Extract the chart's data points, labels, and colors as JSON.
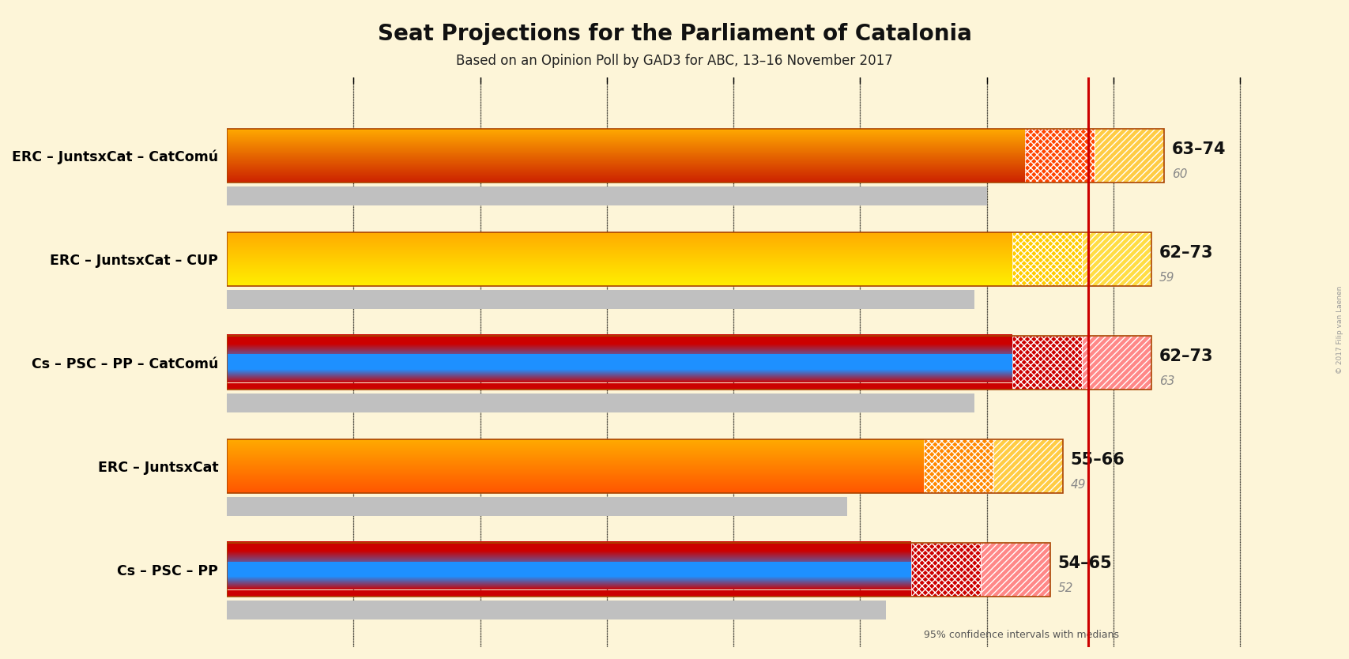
{
  "title": "Seat Projections for the Parliament of Catalonia",
  "subtitle": "Based on an Opinion Poll by GAD3 for ABC, 13–16 November 2017",
  "copyright": "© 2017 Filip van Laenen",
  "background_color": "#fdf5d8",
  "coalitions": [
    {
      "name": "ERC – JuntsxCat – CatComú",
      "range_label": "63–74",
      "median": 60,
      "ci_low": 63,
      "ci_high": 74,
      "gray_bar": 60,
      "type": "independence",
      "gradient_top": "#ffaa00",
      "gradient_mid": "#ff6600",
      "gradient_bot": "#cc2200",
      "ci_left_color": "#ff4400",
      "ci_right_color": "#ffcc44"
    },
    {
      "name": "ERC – JuntsxCat – CUP",
      "range_label": "62–73",
      "median": 59,
      "ci_low": 62,
      "ci_high": 73,
      "gray_bar": 59,
      "type": "independence_cup",
      "gradient_top": "#ffaa00",
      "gradient_mid": "#ff6600",
      "gradient_bot": "#ffee00",
      "ci_left_color": "#ffcc00",
      "ci_right_color": "#ffdd44"
    },
    {
      "name": "Cs – PSC – PP – CatComú",
      "range_label": "62–73",
      "median": 63,
      "ci_low": 62,
      "ci_high": 73,
      "gray_bar": 59,
      "type": "unionist",
      "gradient_top": "#cc0000",
      "gradient_mid": "#1e90ff",
      "gradient_bot": "#cc0000",
      "ci_left_color": "#cc0000",
      "ci_right_color": "#ff8888"
    },
    {
      "name": "ERC – JuntsxCat",
      "range_label": "55–66",
      "median": 49,
      "ci_low": 55,
      "ci_high": 66,
      "gray_bar": 49,
      "type": "independence_only",
      "gradient_top": "#ffaa00",
      "gradient_mid": "#ff7700",
      "gradient_bot": "#ff5500",
      "ci_left_color": "#ff8800",
      "ci_right_color": "#ffcc44"
    },
    {
      "name": "Cs – PSC – PP",
      "range_label": "54–65",
      "median": 52,
      "ci_low": 54,
      "ci_high": 65,
      "gray_bar": 52,
      "type": "unionist_only",
      "gradient_top": "#cc0000",
      "gradient_mid": "#1e90ff",
      "gradient_bot": "#cc0000",
      "ci_left_color": "#cc0000",
      "ci_right_color": "#ff8888"
    }
  ],
  "x_max": 85,
  "majority_line": 68,
  "bar_height": 0.52,
  "gray_bar_height": 0.18,
  "n_gradient_strips": 200
}
